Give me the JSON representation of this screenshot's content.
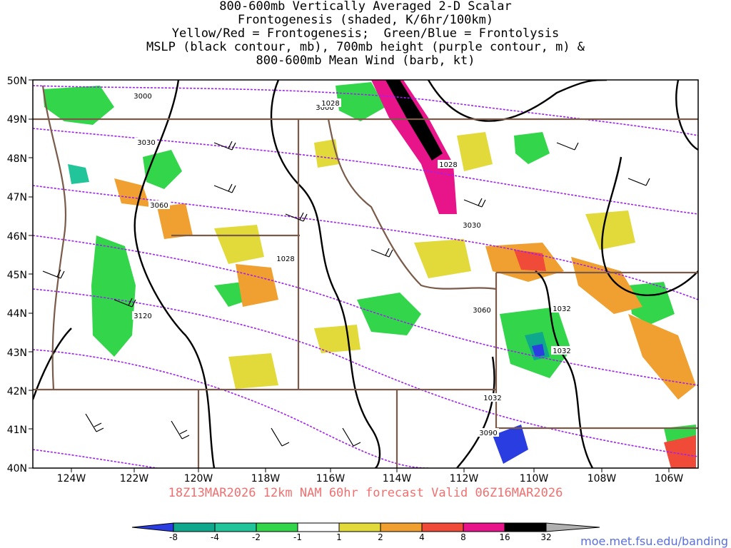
{
  "title_lines": [
    "800-600mb Vertically Averaged 2-D Scalar",
    "Frontogenesis (shaded, K/6hr/100km)",
    "Yellow/Red = Frontogenesis;  Green/Blue = Frontolysis",
    "MSLP (black contour, mb), 700mb height (purple contour, m) &",
    "800-600mb Mean Wind (barb, kt)"
  ],
  "lat_labels": [
    "50N",
    "49N",
    "48N",
    "47N",
    "46N",
    "45N",
    "44N",
    "43N",
    "42N",
    "41N",
    "40N"
  ],
  "lon_labels": [
    "124W",
    "122W",
    "120W",
    "118W",
    "116W",
    "114W",
    "112W",
    "110W",
    "108W",
    "106W"
  ],
  "contour_labels": [
    "3000",
    "3000",
    "1028",
    "3030",
    "1028",
    "3060",
    "3030",
    "1028",
    "3060",
    "1032",
    "1032",
    "3120",
    "1032",
    "3090"
  ],
  "valid_text": "18Z13MAR2026 12km NAM 60hr forecast Valid 06Z16MAR2026",
  "colorbar": {
    "ticks": [
      "-8",
      "-4",
      "-2",
      "-1",
      "1",
      "2",
      "4",
      "8",
      "16",
      "32"
    ],
    "colors": [
      "#2a3de0",
      "#0fa88c",
      "#22c49a",
      "#33d64b",
      "#ffffff",
      "#e2d93a",
      "#f0a030",
      "#f04a38",
      "#e8148a",
      "#000000",
      "#b0b0b0"
    ]
  },
  "colors": {
    "mslp": "#000000",
    "height": "#a020f0",
    "borders": "#7a5a48",
    "valid_text": "#f07070",
    "credit": "#5a6fd8"
  },
  "credit": "moe.met.fsu.edu/banding"
}
